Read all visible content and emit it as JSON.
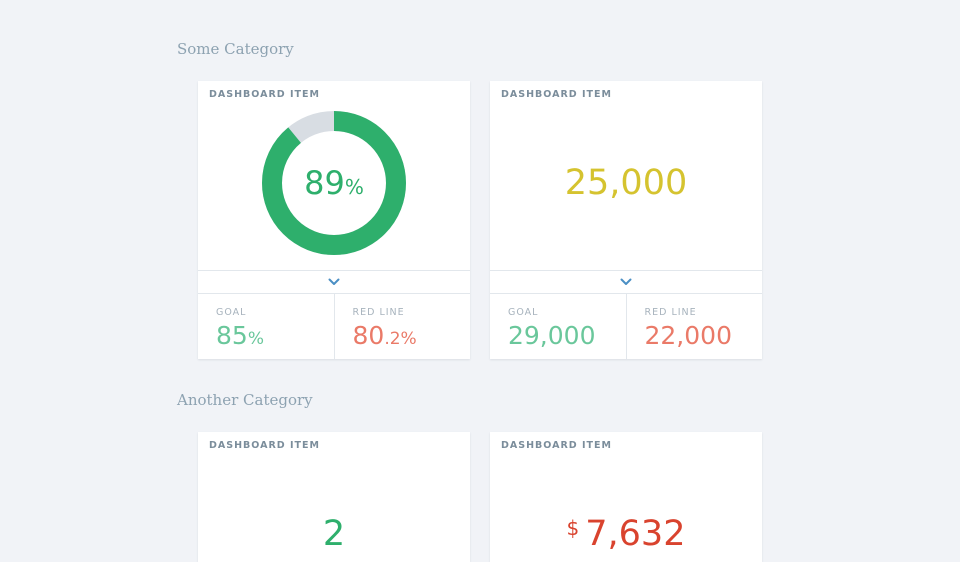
{
  "categories": [
    {
      "title": "Some Category",
      "cards": [
        {
          "label": "DASHBOARD ITEM",
          "donut": {
            "value": "89",
            "unit": "%",
            "fraction": 0.89
          },
          "stats": [
            {
              "label": "GOAL",
              "value": "85",
              "suffix": "%"
            },
            {
              "label": "RED LINE",
              "value": "80",
              "suffix": ".2%"
            }
          ]
        },
        {
          "label": "DASHBOARD ITEM",
          "value": "25,000",
          "stats": [
            {
              "label": "GOAL",
              "value": "29,000"
            },
            {
              "label": "RED LINE",
              "value": "22,000"
            }
          ]
        }
      ]
    },
    {
      "title": "Another Category",
      "cards": [
        {
          "label": "DASHBOARD ITEM",
          "value": "2"
        },
        {
          "label": "DASHBOARD ITEM",
          "currency": "$",
          "value": "7,632"
        }
      ]
    }
  ],
  "colors": {
    "green": "#2eaf6c",
    "track": "#d8dde3",
    "goal": "#6ac79b",
    "red_line": "#ea7a68",
    "yellow": "#d5c32f",
    "danger": "#d9432e",
    "chevron": "#4b8fc4"
  },
  "icons": {
    "expander": "chevron-down-icon"
  }
}
